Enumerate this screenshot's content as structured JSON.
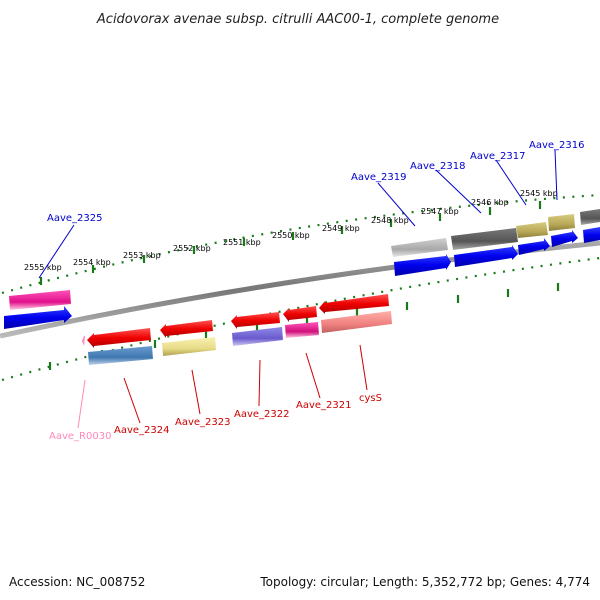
{
  "title": "Acidovorax avenae subsp. citrulli AAC00-1, complete genome",
  "footer": {
    "accession": "Accession: NC_008752",
    "summary": "Topology: circular; Length: 5,352,772 bp; Genes: 4,774"
  },
  "ticks": [
    "2555 kbp",
    "2554 kbp",
    "2553 kbp",
    "2552 kbp",
    "2551 kbp",
    "2550 kbp",
    "2549 kbp",
    "2548 kbp",
    "2547 kbp",
    "2546 kbp",
    "2545 kbp"
  ],
  "colors": {
    "label_forward": "#0000cc",
    "label_reverse": "#cc0000",
    "label_rna": "#ff88bb",
    "scale_green": "#1a7a1a",
    "backbone": "#888888"
  },
  "labels": {
    "forward": [
      "Aave_2325",
      "Aave_2319",
      "Aave_2318",
      "Aave_2317",
      "Aave_2316"
    ],
    "reverse": [
      "Aave_R0030",
      "Aave_2324",
      "Aave_2323",
      "Aave_2322",
      "Aave_2321",
      "cysS"
    ]
  }
}
